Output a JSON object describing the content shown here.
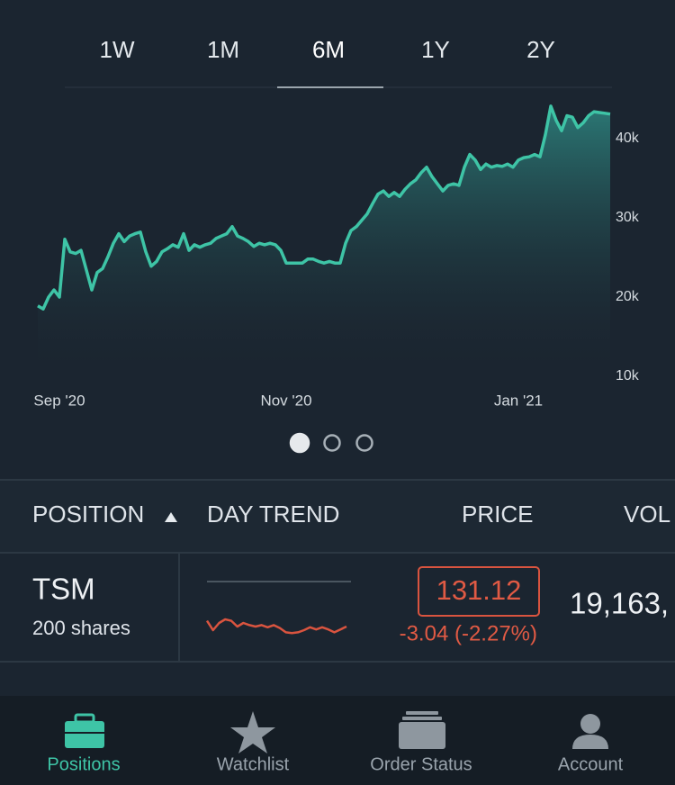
{
  "tabs": [
    "1W",
    "1M",
    "6M",
    "1Y",
    "2Y"
  ],
  "selected_tab": 2,
  "chart_data": {
    "type": "line",
    "color": "#3ec4a6",
    "ylim": [
      10000,
      45000
    ],
    "yticks": [
      {
        "value": 10000,
        "label": "10k"
      },
      {
        "value": 20000,
        "label": "20k"
      },
      {
        "value": 30000,
        "label": "30k"
      },
      {
        "value": 40000,
        "label": "40k"
      }
    ],
    "grid": false,
    "categories": [
      null,
      null,
      null,
      null,
      "Sep '20",
      null,
      null,
      null,
      null,
      null,
      null,
      null,
      null,
      null,
      null,
      null,
      null,
      null,
      null,
      null,
      null,
      null,
      null,
      null,
      null,
      null,
      null,
      null,
      null,
      null,
      null,
      null,
      null,
      null,
      null,
      null,
      null,
      null,
      null,
      null,
      null,
      null,
      null,
      null,
      null,
      null,
      "Nov '20",
      null,
      null,
      null,
      null,
      null,
      null,
      null,
      null,
      null,
      null,
      null,
      null,
      null,
      null,
      null,
      null,
      null,
      null,
      null,
      null,
      null,
      null,
      null,
      null,
      null,
      null,
      null,
      null,
      null,
      null,
      null,
      null,
      null,
      null,
      null,
      null,
      null,
      null,
      null,
      null,
      null,
      null,
      "Jan '21",
      null,
      null,
      null,
      null,
      null,
      null,
      null,
      null,
      null,
      null,
      null,
      null,
      null,
      null,
      null,
      null,
      null
    ],
    "values": [
      18900,
      18500,
      20000,
      20900,
      20000,
      27300,
      25700,
      25500,
      25900,
      23400,
      20900,
      23100,
      23600,
      25100,
      26800,
      28000,
      27000,
      27700,
      28000,
      28200,
      25700,
      23900,
      24500,
      25700,
      26100,
      26600,
      26300,
      28000,
      25900,
      26600,
      26300,
      26600,
      26800,
      27400,
      27700,
      28000,
      28900,
      27700,
      27400,
      27000,
      26400,
      26800,
      26600,
      26800,
      26600,
      25900,
      24300,
      24300,
      24300,
      24300,
      24800,
      24800,
      24500,
      24300,
      24500,
      24300,
      24300,
      26800,
      28400,
      28900,
      29700,
      30500,
      31800,
      33000,
      33400,
      32700,
      33200,
      32700,
      33600,
      34300,
      34800,
      35700,
      36400,
      35200,
      34300,
      33400,
      34100,
      34300,
      34100,
      36400,
      38000,
      37300,
      36100,
      36800,
      36400,
      36600,
      36500,
      36800,
      36400,
      37300,
      37600,
      37700,
      38000,
      37700,
      40500,
      44100,
      42300,
      41000,
      42900,
      42700,
      41400,
      42000,
      42900,
      43400,
      43300,
      43200,
      43100
    ]
  },
  "pager": {
    "count": 3,
    "active": 0
  },
  "table": {
    "columns": [
      "POSITION",
      "DAY TREND",
      "PRICE",
      "VOL"
    ],
    "rows": [
      {
        "symbol": "TSM",
        "shares": "200 shares",
        "day_trend": {
          "type": "line",
          "color": "#d9543f",
          "ylim": [
            130,
            134.5
          ],
          "values": [
            131.4,
            130.75,
            131.25,
            131.5,
            131.4,
            131.0,
            131.25,
            131.1,
            131.0,
            131.1,
            130.95,
            131.1,
            130.9,
            130.6,
            130.55,
            130.6,
            130.75,
            130.95,
            130.8,
            130.95,
            130.8,
            130.6,
            130.8,
            131.0
          ]
        },
        "price": "131.12",
        "change": "-3.04 (-2.27%)",
        "volume": "19,163,"
      }
    ]
  },
  "nav": [
    {
      "label": "Positions",
      "active": true
    },
    {
      "label": "Watchlist",
      "active": false
    },
    {
      "label": "Order Status",
      "active": false
    },
    {
      "label": "Account",
      "active": false
    }
  ]
}
